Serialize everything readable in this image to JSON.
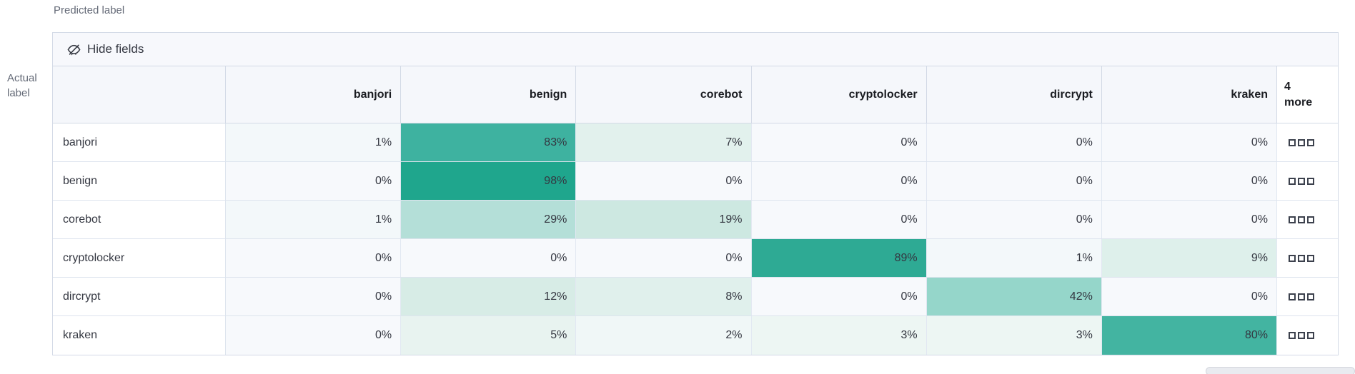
{
  "axes": {
    "predicted_label": "Predicted label",
    "actual_label_lines": [
      "Actual",
      "label"
    ]
  },
  "toolbar": {
    "hide_fields_label": "Hide fields"
  },
  "grid": {
    "columns": [
      "banjori",
      "benign",
      "corebot",
      "cryptolocker",
      "dircrypt",
      "kraken"
    ],
    "more_header": {
      "count": "4",
      "word": "more"
    },
    "rows": [
      {
        "label": "banjori",
        "cells": [
          {
            "text": "1%",
            "bg": "#f3f8fa"
          },
          {
            "text": "83%",
            "bg": "#3eb2a0"
          },
          {
            "text": "7%",
            "bg": "#e2f1ed"
          },
          {
            "text": "0%",
            "bg": "#f7f9fc"
          },
          {
            "text": "0%",
            "bg": "#f7f9fc"
          },
          {
            "text": "0%",
            "bg": "#f7f9fc"
          }
        ]
      },
      {
        "label": "benign",
        "cells": [
          {
            "text": "0%",
            "bg": "#f7f9fc"
          },
          {
            "text": "98%",
            "bg": "#1fa68d"
          },
          {
            "text": "0%",
            "bg": "#f7f9fc"
          },
          {
            "text": "0%",
            "bg": "#f7f9fc"
          },
          {
            "text": "0%",
            "bg": "#f7f9fc"
          },
          {
            "text": "0%",
            "bg": "#f7f9fc"
          }
        ]
      },
      {
        "label": "corebot",
        "cells": [
          {
            "text": "1%",
            "bg": "#f3f8fa"
          },
          {
            "text": "29%",
            "bg": "#b4dfd8"
          },
          {
            "text": "19%",
            "bg": "#cde8e1"
          },
          {
            "text": "0%",
            "bg": "#f7f9fc"
          },
          {
            "text": "0%",
            "bg": "#f7f9fc"
          },
          {
            "text": "0%",
            "bg": "#f7f9fc"
          }
        ]
      },
      {
        "label": "cryptolocker",
        "cells": [
          {
            "text": "0%",
            "bg": "#f7f9fc"
          },
          {
            "text": "0%",
            "bg": "#f7f9fc"
          },
          {
            "text": "0%",
            "bg": "#f7f9fc"
          },
          {
            "text": "89%",
            "bg": "#2eaa94"
          },
          {
            "text": "1%",
            "bg": "#f3f8fa"
          },
          {
            "text": "9%",
            "bg": "#def0eb"
          }
        ]
      },
      {
        "label": "dircrypt",
        "cells": [
          {
            "text": "0%",
            "bg": "#f7f9fc"
          },
          {
            "text": "12%",
            "bg": "#d7ece6"
          },
          {
            "text": "8%",
            "bg": "#e0f0ec"
          },
          {
            "text": "0%",
            "bg": "#f7f9fc"
          },
          {
            "text": "42%",
            "bg": "#95d6ca"
          },
          {
            "text": "0%",
            "bg": "#f7f9fc"
          }
        ]
      },
      {
        "label": "kraken",
        "cells": [
          {
            "text": "0%",
            "bg": "#f7f9fc"
          },
          {
            "text": "5%",
            "bg": "#e8f3f0"
          },
          {
            "text": "2%",
            "bg": "#f0f7f7"
          },
          {
            "text": "3%",
            "bg": "#edf6f3"
          },
          {
            "text": "3%",
            "bg": "#edf6f3"
          },
          {
            "text": "80%",
            "bg": "#43b4a1"
          }
        ]
      }
    ]
  },
  "colors": {
    "heat_max": "#1fa68d",
    "heat_min": "#f7f9fc",
    "border": "#d3dae6",
    "header_bg": "#f5f7fb",
    "toolbar_bg": "#f7f8fc",
    "text": "#343741",
    "axis_text": "#646a77"
  },
  "chart_data": {
    "type": "heatmap",
    "xlabel": "Predicted label",
    "ylabel": "Actual label",
    "x_categories": [
      "banjori",
      "benign",
      "corebot",
      "cryptolocker",
      "dircrypt",
      "kraken"
    ],
    "y_categories": [
      "banjori",
      "benign",
      "corebot",
      "cryptolocker",
      "dircrypt",
      "kraken"
    ],
    "values_percent": [
      [
        1,
        83,
        7,
        0,
        0,
        0
      ],
      [
        0,
        98,
        0,
        0,
        0,
        0
      ],
      [
        1,
        29,
        19,
        0,
        0,
        0
      ],
      [
        0,
        0,
        0,
        89,
        1,
        9
      ],
      [
        0,
        12,
        8,
        0,
        42,
        0
      ],
      [
        0,
        5,
        2,
        3,
        3,
        80
      ]
    ],
    "hidden_columns_more": 4,
    "color_scale": {
      "min": "#f7f9fc",
      "max": "#1fa68d"
    },
    "legend_position": "none"
  }
}
